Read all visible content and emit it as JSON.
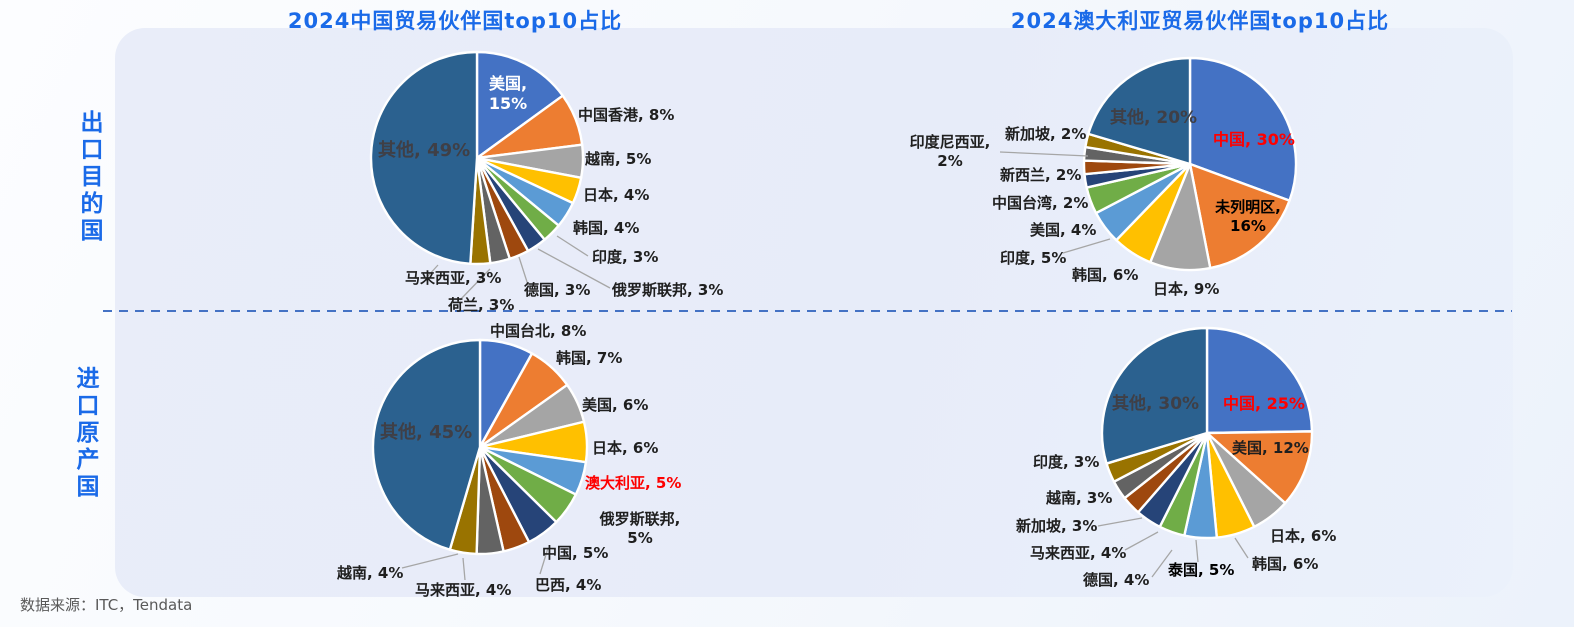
{
  "page": {
    "row_labels": [
      "出口目的国",
      "进口原产国"
    ],
    "source_note": "数据来源：ITC，Tendata",
    "colors": {
      "title_blue": "#1a6ae8",
      "label_dark": "#1f1f1f",
      "inside_label_gray": "#3f3f46",
      "highlight_red": "#fe0000",
      "other_slice_blue": "#2b618f",
      "leader_line_gray": "#a6a6a6",
      "dashed_divider_blue": "#4472c4"
    }
  },
  "palette": [
    "#4472c4",
    "#ed7d31",
    "#a5a5a5",
    "#ffc000",
    "#5b9bd5",
    "#70ad47",
    "#264478",
    "#9e480e",
    "#636363",
    "#997300",
    "#2b618f"
  ],
  "chart_data": [
    {
      "id": "china-export-destinations",
      "type": "pie",
      "title": "2024中国贸易伙伴国top10占比",
      "unit": "%",
      "slices": [
        {
          "label": "美国",
          "pct": 15,
          "color": "#4472c4",
          "style": "inside-white"
        },
        {
          "label": "中国香港",
          "pct": 8,
          "color": "#ed7d31"
        },
        {
          "label": "越南",
          "pct": 5,
          "color": "#a5a5a5"
        },
        {
          "label": "日本",
          "pct": 4,
          "color": "#ffc000"
        },
        {
          "label": "韩国",
          "pct": 4,
          "color": "#5b9bd5"
        },
        {
          "label": "印度",
          "pct": 3,
          "color": "#70ad47"
        },
        {
          "label": "俄罗斯联邦",
          "pct": 3,
          "color": "#264478"
        },
        {
          "label": "德国",
          "pct": 3,
          "color": "#9e480e"
        },
        {
          "label": "荷兰",
          "pct": 3,
          "color": "#636363"
        },
        {
          "label": "马来西亚",
          "pct": 3,
          "color": "#997300"
        },
        {
          "label": "其他",
          "pct": 49,
          "color": "#2b618f",
          "style": "inside-dark"
        }
      ]
    },
    {
      "id": "australia-export-destinations",
      "type": "pie",
      "title": "2024澳大利亚贸易伙伴国top10占比",
      "unit": "%",
      "slices": [
        {
          "label": "中国",
          "pct": 30,
          "color": "#4472c4",
          "style": "red"
        },
        {
          "label": "未列明区",
          "pct": 16,
          "color": "#ed7d31",
          "style": "black"
        },
        {
          "label": "日本",
          "pct": 9,
          "color": "#a5a5a5"
        },
        {
          "label": "韩国",
          "pct": 6,
          "color": "#ffc000"
        },
        {
          "label": "印度",
          "pct": 5,
          "color": "#5b9bd5"
        },
        {
          "label": "美国",
          "pct": 4,
          "color": "#70ad47"
        },
        {
          "label": "中国台湾",
          "pct": 2,
          "color": "#264478"
        },
        {
          "label": "新西兰",
          "pct": 2,
          "color": "#9e480e"
        },
        {
          "label": "印度尼西亚",
          "pct": 2,
          "color": "#636363"
        },
        {
          "label": "新加坡",
          "pct": 2,
          "color": "#997300"
        },
        {
          "label": "其他",
          "pct": 20,
          "color": "#2b618f",
          "style": "inside-dark"
        }
      ]
    },
    {
      "id": "china-import-origins",
      "type": "pie",
      "unit": "%",
      "slices": [
        {
          "label": "中国台北",
          "pct": 8,
          "color": "#4472c4"
        },
        {
          "label": "韩国",
          "pct": 7,
          "color": "#ed7d31"
        },
        {
          "label": "美国",
          "pct": 6,
          "color": "#a5a5a5"
        },
        {
          "label": "日本",
          "pct": 6,
          "color": "#ffc000"
        },
        {
          "label": "澳大利亚",
          "pct": 5,
          "color": "#5b9bd5",
          "style": "red"
        },
        {
          "label": "俄罗斯联邦",
          "pct": 5,
          "color": "#70ad47"
        },
        {
          "label": "中国",
          "pct": 5,
          "color": "#264478"
        },
        {
          "label": "巴西",
          "pct": 4,
          "color": "#9e480e"
        },
        {
          "label": "马来西亚",
          "pct": 4,
          "color": "#636363"
        },
        {
          "label": "越南",
          "pct": 4,
          "color": "#997300"
        },
        {
          "label": "其他",
          "pct": 45,
          "color": "#2b618f",
          "style": "inside-dark"
        }
      ]
    },
    {
      "id": "australia-import-origins",
      "type": "pie",
      "unit": "%",
      "slices": [
        {
          "label": "中国",
          "pct": 25,
          "color": "#4472c4",
          "style": "red"
        },
        {
          "label": "美国",
          "pct": 12,
          "color": "#ed7d31"
        },
        {
          "label": "日本",
          "pct": 6,
          "color": "#a5a5a5"
        },
        {
          "label": "韩国",
          "pct": 6,
          "color": "#ffc000"
        },
        {
          "label": "泰国",
          "pct": 5,
          "color": "#5b9bd5",
          "style": "black"
        },
        {
          "label": "德国",
          "pct": 4,
          "color": "#70ad47"
        },
        {
          "label": "马来西亚",
          "pct": 4,
          "color": "#264478"
        },
        {
          "label": "新加坡",
          "pct": 3,
          "color": "#9e480e"
        },
        {
          "label": "越南",
          "pct": 3,
          "color": "#636363"
        },
        {
          "label": "印度",
          "pct": 3,
          "color": "#997300"
        },
        {
          "label": "其他",
          "pct": 30,
          "color": "#2b618f",
          "style": "inside-dark"
        }
      ]
    }
  ]
}
